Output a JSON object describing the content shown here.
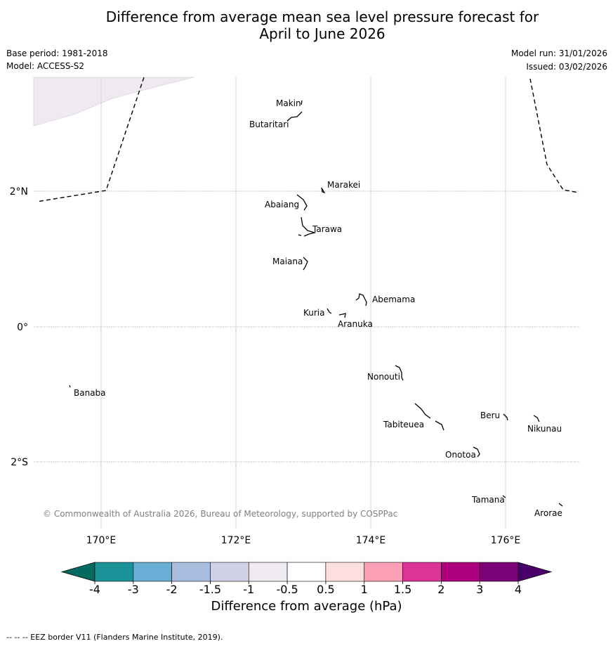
{
  "header": {
    "title_line1": "Difference from average mean sea level pressure forecast for",
    "title_line2": "April to June 2026",
    "base_period": "Base period: 1981-2018",
    "model": "Model: ACCESS-S2",
    "model_run": "Model run: 31/01/2026",
    "issued": "Issued: 03/02/2026"
  },
  "map": {
    "lon_ticks": [
      "170°E",
      "172°E",
      "174°E",
      "176°E"
    ],
    "lat_ticks": [
      "2°N",
      "0°",
      "2°S"
    ],
    "copyright": "© Commonwealth of Australia 2026, Bureau of Meteorology, supported by COSPPac",
    "shaded_anomaly_hpa": "-0.5 to -1",
    "islands": [
      {
        "name": "Makin"
      },
      {
        "name": "Butaritari"
      },
      {
        "name": "Marakei"
      },
      {
        "name": "Abaiang"
      },
      {
        "name": "Tarawa"
      },
      {
        "name": "Maiana"
      },
      {
        "name": "Abemama"
      },
      {
        "name": "Kuria"
      },
      {
        "name": "Aranuka"
      },
      {
        "name": "Nonouti"
      },
      {
        "name": "Banaba"
      },
      {
        "name": "Beru"
      },
      {
        "name": "Tabiteuea"
      },
      {
        "name": "Nikunau"
      },
      {
        "name": "Onotoa"
      },
      {
        "name": "Tamana"
      },
      {
        "name": "Arorae"
      }
    ]
  },
  "colorbar": {
    "label": "Difference from average (hPa)",
    "ticks": [
      "-4",
      "-3",
      "-2",
      "-1.5",
      "-1",
      "-0.5",
      "0.5",
      "1",
      "1.5",
      "2",
      "3",
      "4"
    ],
    "colors": [
      "#1b9399",
      "#6aadd5",
      "#a9bedf",
      "#d0d1e6",
      "#efe9f1",
      "#ffffff",
      "#fde0dd",
      "#fa9fb5",
      "#dd3497",
      "#ae017e",
      "#7a0177"
    ],
    "low_extend_color": "#04695e",
    "high_extend_color": "#49006a"
  },
  "footnote": "--  --  -- EEZ border V11 (Flanders Marine Institute, 2019)."
}
